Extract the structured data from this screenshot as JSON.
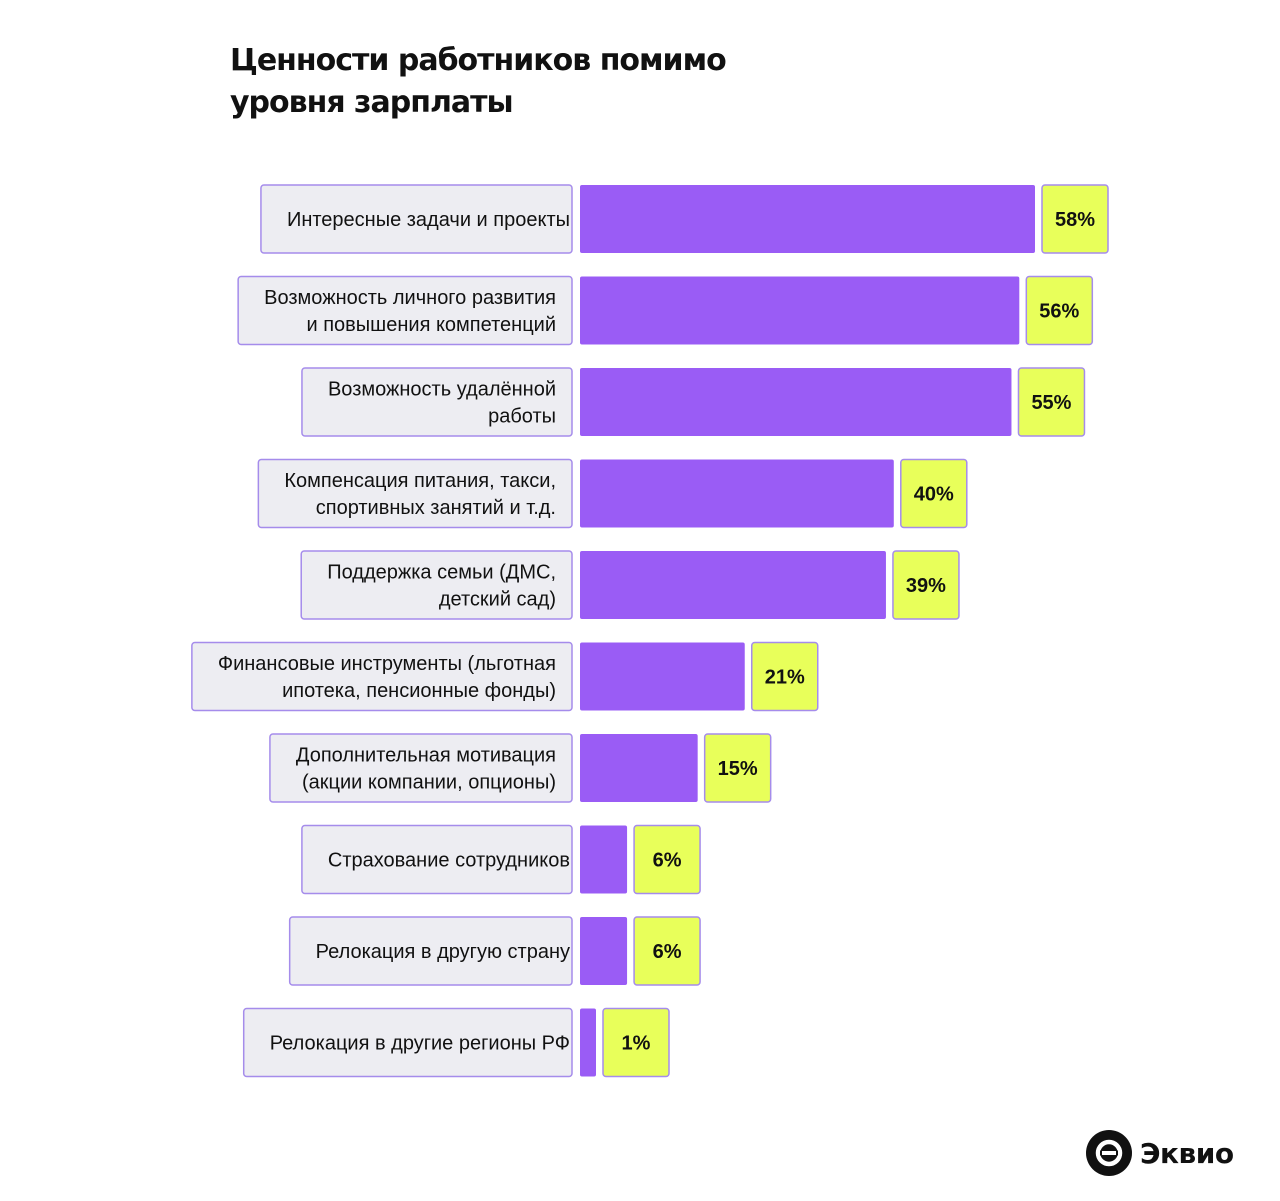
{
  "brand": {
    "name": "Эквио",
    "icon": "ekvio-logo-icon"
  },
  "colors": {
    "bar": "#9A5CF5",
    "value_box": "#E8FF5A",
    "label_box": "#EDEDF2",
    "box_border": "#A58CEB"
  },
  "chart_data": {
    "type": "bar",
    "orientation": "horizontal",
    "title": "Ценности работников помимо уровня зарплаты",
    "title_lines": [
      "Ценности работников помимо",
      "уровня зарплаты"
    ],
    "unit": "%",
    "categories": [
      [
        "Интересные задачи и проекты"
      ],
      [
        "Возможность личного развития",
        "и повышения компетенций"
      ],
      [
        "Возможность удалённой",
        "работы"
      ],
      [
        "Компенсация питания, такси,",
        "спортивных занятий и т.д."
      ],
      [
        "Поддержка семьи (ДМС,",
        "детский сад)"
      ],
      [
        "Финансовые инструменты (льготная",
        "ипотека, пенсионные фонды)"
      ],
      [
        "Дополнительная мотивация",
        "(акции компании, опционы)"
      ],
      [
        "Страхование сотрудников"
      ],
      [
        "Релокация в другую страну"
      ],
      [
        "Релокация в другие регионы РФ"
      ]
    ],
    "values": [
      58,
      56,
      55,
      40,
      39,
      21,
      15,
      6,
      6,
      1
    ],
    "value_labels": [
      "58%",
      "56%",
      "55%",
      "40%",
      "39%",
      "21%",
      "15%",
      "6%",
      "6%",
      "1%"
    ],
    "xlim": [
      0,
      58
    ],
    "grid": false,
    "legend": "none"
  }
}
